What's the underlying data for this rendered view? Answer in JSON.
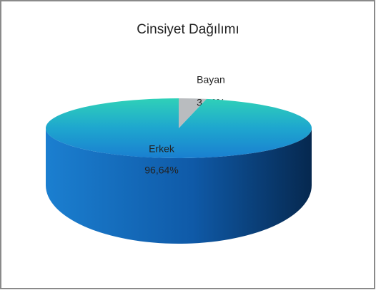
{
  "chart_data": {
    "type": "pie",
    "title": "Cinsiyet Dağılımı",
    "categories": [
      "Bayan",
      "Erkek"
    ],
    "values": [
      3.36,
      96.64
    ],
    "value_labels": [
      "3,36%",
      "96,64%"
    ],
    "colors": [
      "#b9bcbf",
      "#1fa8c9"
    ]
  }
}
